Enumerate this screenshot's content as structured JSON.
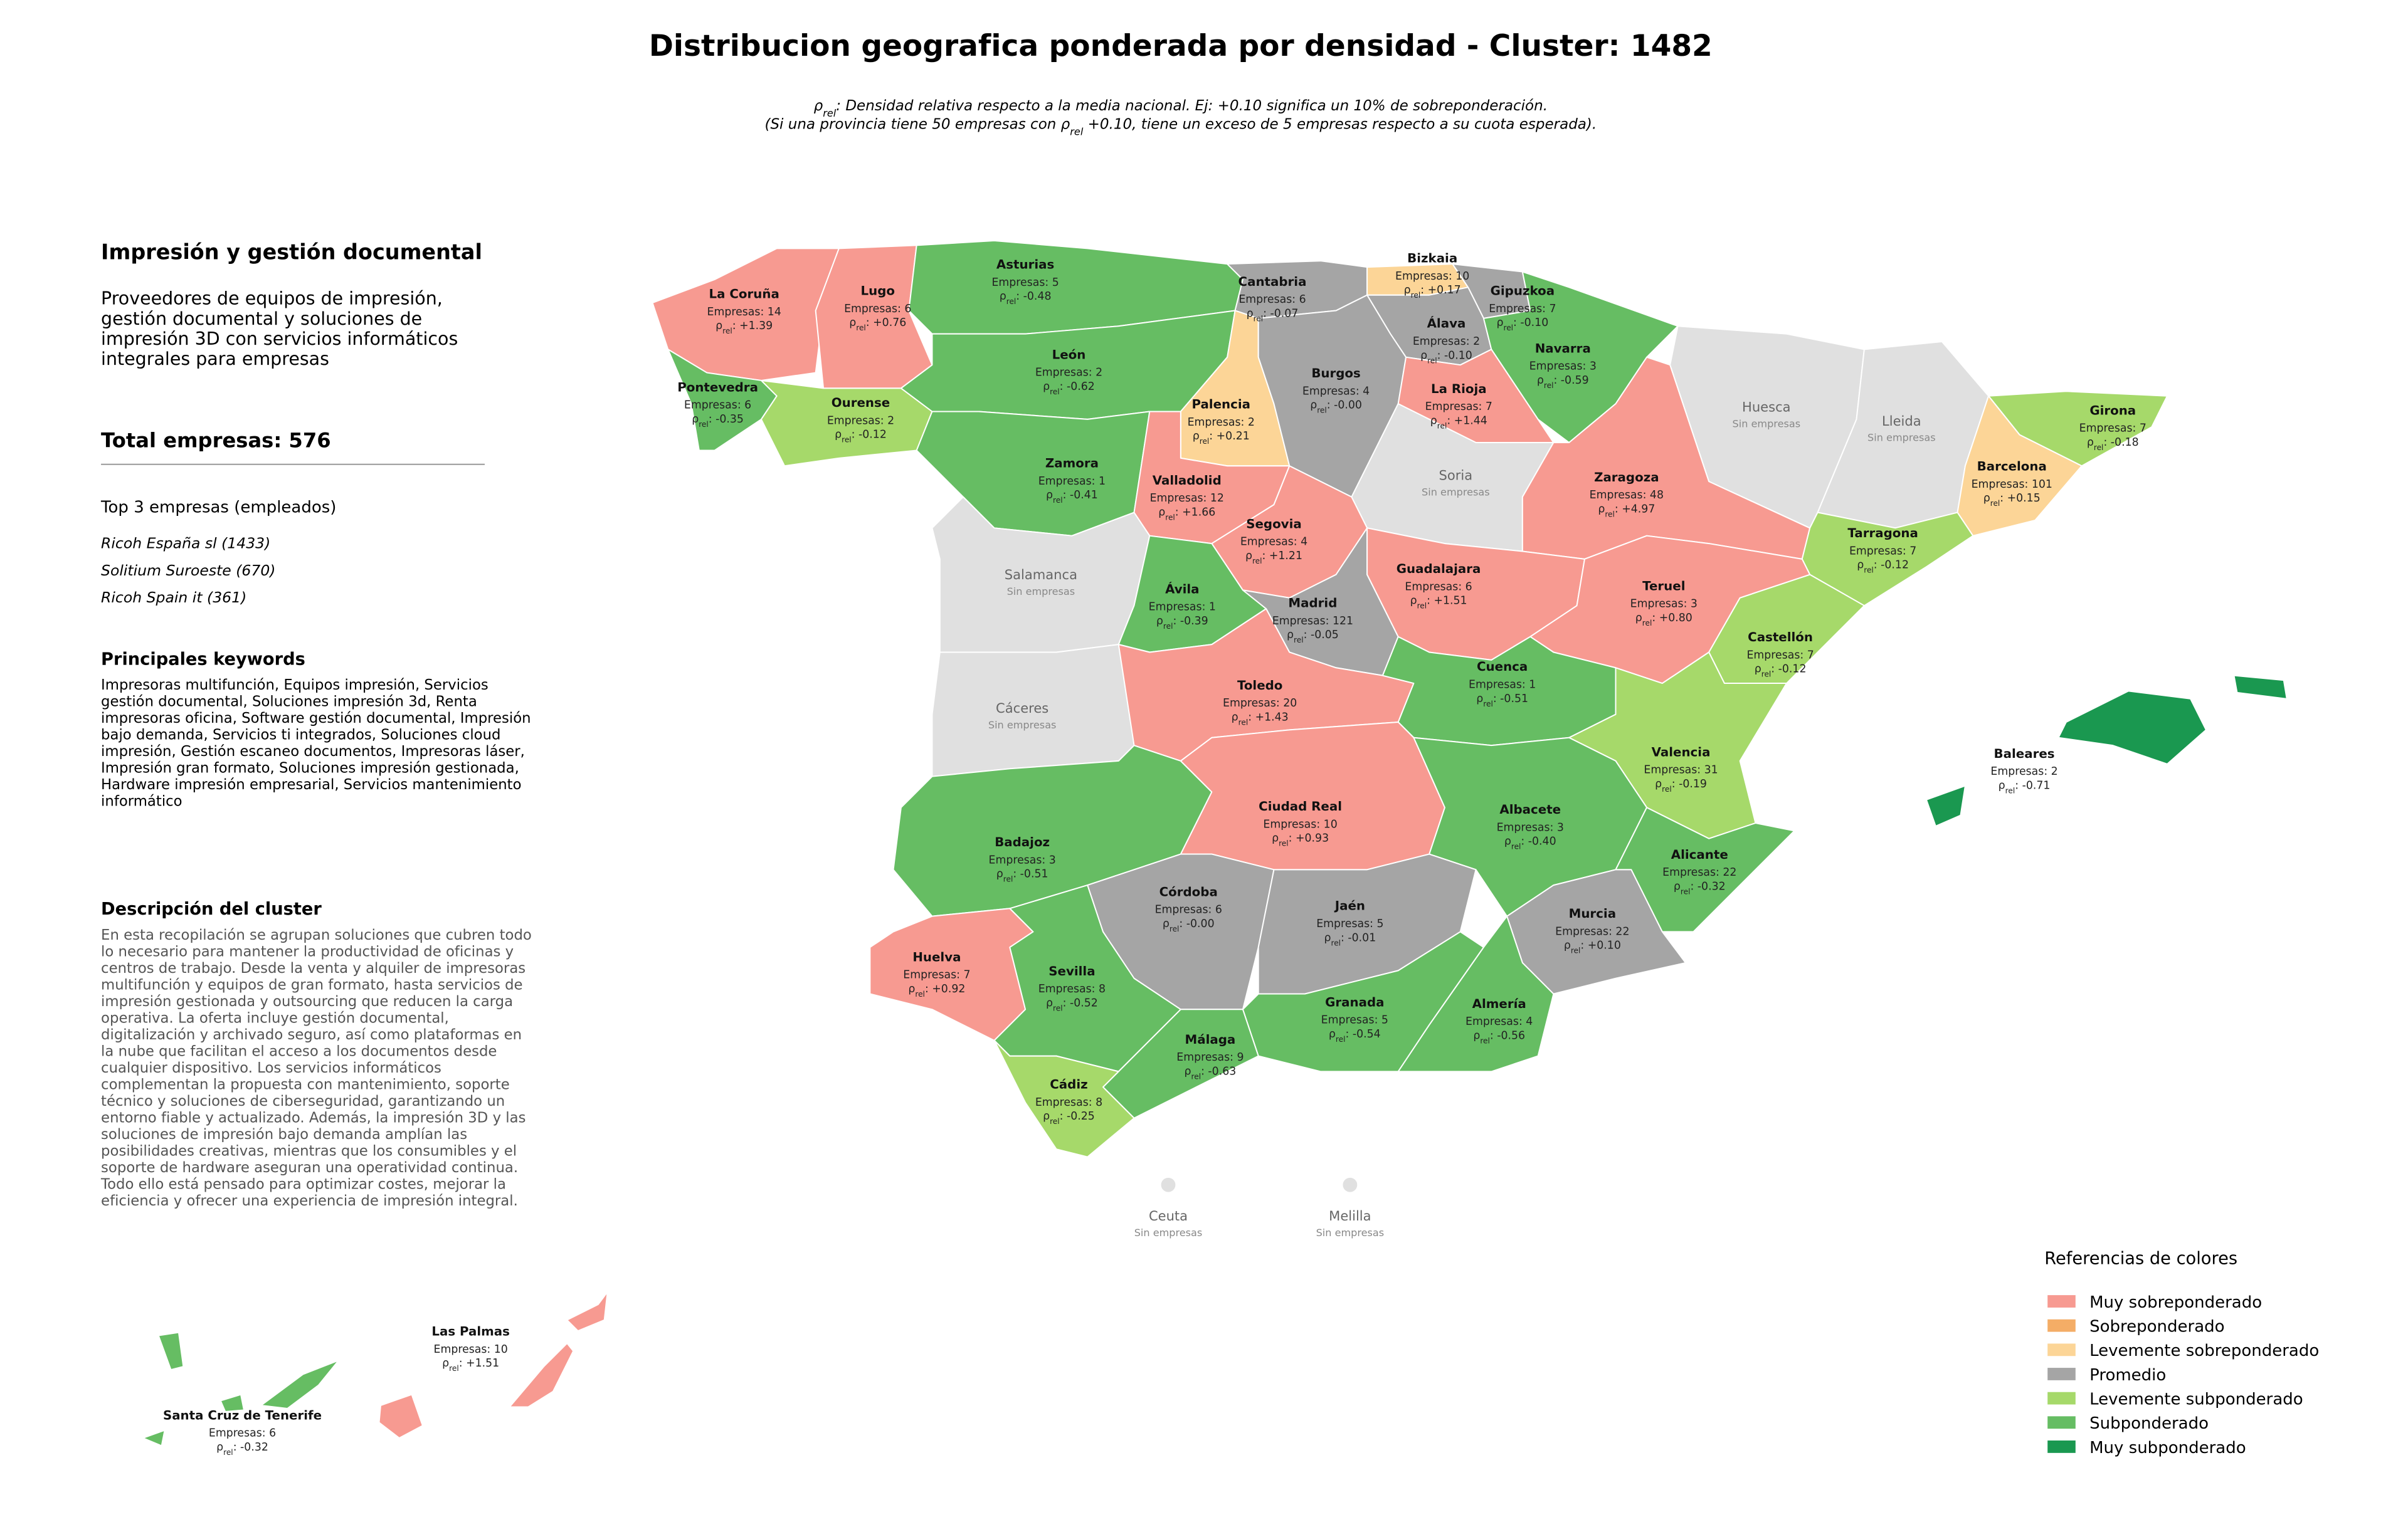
{
  "header": {
    "title": "Distribucion geografica ponderada por densidad - Cluster: 1482",
    "subtitle": [
      [
        {
          "text": "ρ"
        },
        {
          "text": "rel",
          "sub": true
        },
        {
          "text": ": Densidad relativa respecto a la media nacional. Ej: +0.10 significa un 10% de sobreponderación."
        }
      ],
      [
        {
          "text": "(Si una provincia tiene 50 empresas con "
        },
        {
          "text": "ρ"
        },
        {
          "text": "rel",
          "sub": true
        },
        {
          "text": " +0.10, tiene un exceso de 5 empresas respecto a su cuota esperada)."
        }
      ]
    ]
  },
  "panel": {
    "title": "Impresión y gestión documental",
    "summary": [
      "Proveedores de equipos de impresión,",
      "gestión documental y soluciones de",
      "impresión 3D con servicios informáticos",
      "integrales para empresas"
    ],
    "total": "Total empresas: 576",
    "top_title": "Top 3 empresas (empleados)",
    "top": [
      "Ricoh España sl (1433)",
      "Solitium Suroeste (670)",
      "Ricoh Spain it (361)"
    ],
    "keywords_title": "Principales keywords",
    "keywords": [
      "Impresoras multifunción, Equipos impresión, Servicios",
      "gestión documental, Soluciones impresión 3d, Renta",
      "impresoras oficina, Software gestión documental, Impresión",
      "bajo demanda, Servicios ti integrados, Soluciones cloud",
      "impresión, Gestión escaneo documentos, Impresoras láser,",
      "Impresión gran formato, Soluciones impresión gestionada,",
      "Hardware impresión empresarial, Servicios mantenimiento",
      "informático"
    ],
    "description_title": "Descripción del cluster",
    "description": [
      "En esta recopilación se agrupan soluciones que cubren todo",
      "lo necesario para mantener la productividad de oficinas y",
      "centros de trabajo. Desde la venta y alquiler de impresoras",
      "multifunción y equipos de gran formato, hasta servicios de",
      "impresión gestionada y outsourcing que reducen la carga",
      "operativa. La oferta incluye gestión documental,",
      "digitalización y archivado seguro, así como plataformas en",
      "la nube que facilitan el acceso a los documentos desde",
      "cualquier dispositivo. Los servicios informáticos",
      "complementan la propuesta con mantenimiento, soporte",
      "técnico y soluciones de ciberseguridad, garantizando un",
      "entorno fiable y actualizado. Además, la impresión 3D y las",
      "soluciones de impresión bajo demanda amplían las",
      "posibilidades creativas, mientras que los consumibles y el",
      "soporte de hardware aseguran una operatividad continua.",
      "Todo ello está pensado para optimizar costes, mejorar la",
      "eficiencia y ofrecer una experiencia de impresión integral."
    ]
  },
  "legend": {
    "title": "Referencias de colores",
    "items": [
      {
        "name": "Muy sobreponderado",
        "color": "#f79a91"
      },
      {
        "name": "Sobreponderado",
        "color": "#f4ad66"
      },
      {
        "name": "Levemente sobreponderado",
        "color": "#fcd597"
      },
      {
        "name": "Promedio",
        "color": "#a5a5a5"
      },
      {
        "name": "Levemente subponderado",
        "color": "#a6d96a"
      },
      {
        "name": "Subponderado",
        "color": "#66bd63"
      },
      {
        "name": "Muy subponderado",
        "color": "#1a9850"
      }
    ]
  },
  "provinces": [
    {
      "name": "La Coruña",
      "color": "#f79a91",
      "companies": "Empresas: 14",
      "density": [
        {
          "text": "ρ"
        },
        {
          "text": "rel",
          "sub": true
        },
        {
          "text": ": +1.39"
        }
      ]
    },
    {
      "name": "Lugo",
      "color": "#f79a91",
      "companies": "Empresas: 6",
      "density": [
        {
          "text": "ρ"
        },
        {
          "text": "rel",
          "sub": true
        },
        {
          "text": ": +0.76"
        }
      ]
    },
    {
      "name": "Pontevedra",
      "color": "#66bd63",
      "companies": "Empresas: 6",
      "density": [
        {
          "text": "ρ"
        },
        {
          "text": "rel",
          "sub": true
        },
        {
          "text": ": -0.35"
        }
      ]
    },
    {
      "name": "Ourense",
      "color": "#a6d96a",
      "companies": "Empresas: 2",
      "density": [
        {
          "text": "ρ"
        },
        {
          "text": "rel",
          "sub": true
        },
        {
          "text": ": -0.12"
        }
      ]
    },
    {
      "name": "Asturias",
      "color": "#66bd63",
      "companies": "Empresas: 5",
      "density": [
        {
          "text": "ρ"
        },
        {
          "text": "rel",
          "sub": true
        },
        {
          "text": ": -0.48"
        }
      ]
    },
    {
      "name": "Cantabria",
      "color": "#a5a5a5",
      "companies": "Empresas: 6",
      "density": [
        {
          "text": "ρ"
        },
        {
          "text": "rel",
          "sub": true
        },
        {
          "text": ": -0.07"
        }
      ]
    },
    {
      "name": "Bizkaia",
      "color": "#fcd597",
      "companies": "Empresas: 10",
      "density": [
        {
          "text": "ρ"
        },
        {
          "text": "rel",
          "sub": true
        },
        {
          "text": ": +0.17"
        }
      ]
    },
    {
      "name": "Gipuzkoa",
      "color": "#a5a5a5",
      "companies": "Empresas: 7",
      "density": [
        {
          "text": "ρ"
        },
        {
          "text": "rel",
          "sub": true
        },
        {
          "text": ": -0.10"
        }
      ]
    },
    {
      "name": "Álava",
      "color": "#a5a5a5",
      "companies": "Empresas: 2",
      "density": [
        {
          "text": "ρ"
        },
        {
          "text": "rel",
          "sub": true
        },
        {
          "text": ": -0.10"
        }
      ]
    },
    {
      "name": "Navarra",
      "color": "#66bd63",
      "companies": "Empresas: 3",
      "density": [
        {
          "text": "ρ"
        },
        {
          "text": "rel",
          "sub": true
        },
        {
          "text": ": -0.59"
        }
      ]
    },
    {
      "name": "León",
      "color": "#66bd63",
      "companies": "Empresas: 2",
      "density": [
        {
          "text": "ρ"
        },
        {
          "text": "rel",
          "sub": true
        },
        {
          "text": ": -0.62"
        }
      ]
    },
    {
      "name": "Palencia",
      "color": "#fcd597",
      "companies": "Empresas: 2",
      "density": [
        {
          "text": "ρ"
        },
        {
          "text": "rel",
          "sub": true
        },
        {
          "text": ": +0.21"
        }
      ]
    },
    {
      "name": "Burgos",
      "color": "#a5a5a5",
      "companies": "Empresas: 4",
      "density": [
        {
          "text": "ρ"
        },
        {
          "text": "rel",
          "sub": true
        },
        {
          "text": ": -0.00"
        }
      ]
    },
    {
      "name": "La Rioja",
      "color": "#f79a91",
      "companies": "Empresas: 7",
      "density": [
        {
          "text": "ρ"
        },
        {
          "text": "rel",
          "sub": true
        },
        {
          "text": ": +1.44"
        }
      ]
    },
    {
      "name": "Zamora",
      "color": "#66bd63",
      "companies": "Empresas: 1",
      "density": [
        {
          "text": "ρ"
        },
        {
          "text": "rel",
          "sub": true
        },
        {
          "text": ": -0.41"
        }
      ]
    },
    {
      "name": "Valladolid",
      "color": "#f79a91",
      "companies": "Empresas: 12",
      "density": [
        {
          "text": "ρ"
        },
        {
          "text": "rel",
          "sub": true
        },
        {
          "text": ": +1.66"
        }
      ]
    },
    {
      "name": "Soria",
      "color": "#e0e0e0",
      "companies": "Sin empresas"
    },
    {
      "name": "Segovia",
      "color": "#f79a91",
      "companies": "Empresas: 4",
      "density": [
        {
          "text": "ρ"
        },
        {
          "text": "rel",
          "sub": true
        },
        {
          "text": ": +1.21"
        }
      ]
    },
    {
      "name": "Zaragoza",
      "color": "#f79a91",
      "companies": "Empresas: 48",
      "density": [
        {
          "text": "ρ"
        },
        {
          "text": "rel",
          "sub": true
        },
        {
          "text": ": +4.97"
        }
      ]
    },
    {
      "name": "Huesca",
      "color": "#e0e0e0",
      "companies": "Sin empresas"
    },
    {
      "name": "Lleida",
      "color": "#e0e0e0",
      "companies": "Sin empresas"
    },
    {
      "name": "Girona",
      "color": "#a6d96a",
      "companies": "Empresas: 7",
      "density": [
        {
          "text": "ρ"
        },
        {
          "text": "rel",
          "sub": true
        },
        {
          "text": ": -0.18"
        }
      ]
    },
    {
      "name": "Barcelona",
      "color": "#fcd597",
      "companies": "Empresas: 101",
      "density": [
        {
          "text": "ρ"
        },
        {
          "text": "rel",
          "sub": true
        },
        {
          "text": ": +0.15"
        }
      ]
    },
    {
      "name": "Tarragona",
      "color": "#a6d96a",
      "companies": "Empresas: 7",
      "density": [
        {
          "text": "ρ"
        },
        {
          "text": "rel",
          "sub": true
        },
        {
          "text": ": -0.12"
        }
      ]
    },
    {
      "name": "Salamanca",
      "color": "#e0e0e0",
      "companies": "Sin empresas"
    },
    {
      "name": "Ávila",
      "color": "#66bd63",
      "companies": "Empresas: 1",
      "density": [
        {
          "text": "ρ"
        },
        {
          "text": "rel",
          "sub": true
        },
        {
          "text": ": -0.39"
        }
      ]
    },
    {
      "name": "Madrid",
      "color": "#a5a5a5",
      "companies": "Empresas: 121",
      "density": [
        {
          "text": "ρ"
        },
        {
          "text": "rel",
          "sub": true
        },
        {
          "text": ": -0.05"
        }
      ]
    },
    {
      "name": "Guadalajara",
      "color": "#f79a91",
      "companies": "Empresas: 6",
      "density": [
        {
          "text": "ρ"
        },
        {
          "text": "rel",
          "sub": true
        },
        {
          "text": ": +1.51"
        }
      ]
    },
    {
      "name": "Teruel",
      "color": "#f79a91",
      "companies": "Empresas: 3",
      "density": [
        {
          "text": "ρ"
        },
        {
          "text": "rel",
          "sub": true
        },
        {
          "text": ": +0.80"
        }
      ]
    },
    {
      "name": "Castellón",
      "color": "#a6d96a",
      "companies": "Empresas: 7",
      "density": [
        {
          "text": "ρ"
        },
        {
          "text": "rel",
          "sub": true
        },
        {
          "text": ": -0.12"
        }
      ]
    },
    {
      "name": "Cáceres",
      "color": "#e0e0e0",
      "companies": "Sin empresas"
    },
    {
      "name": "Toledo",
      "color": "#f79a91",
      "companies": "Empresas: 20",
      "density": [
        {
          "text": "ρ"
        },
        {
          "text": "rel",
          "sub": true
        },
        {
          "text": ": +1.43"
        }
      ]
    },
    {
      "name": "Cuenca",
      "color": "#66bd63",
      "companies": "Empresas: 1",
      "density": [
        {
          "text": "ρ"
        },
        {
          "text": "rel",
          "sub": true
        },
        {
          "text": ": -0.51"
        }
      ]
    },
    {
      "name": "Valencia",
      "color": "#a6d96a",
      "companies": "Empresas: 31",
      "density": [
        {
          "text": "ρ"
        },
        {
          "text": "rel",
          "sub": true
        },
        {
          "text": ": -0.19"
        }
      ]
    },
    {
      "name": "Badajoz",
      "color": "#66bd63",
      "companies": "Empresas: 3",
      "density": [
        {
          "text": "ρ"
        },
        {
          "text": "rel",
          "sub": true
        },
        {
          "text": ": -0.51"
        }
      ]
    },
    {
      "name": "Ciudad Real",
      "color": "#f79a91",
      "companies": "Empresas: 10",
      "density": [
        {
          "text": "ρ"
        },
        {
          "text": "rel",
          "sub": true
        },
        {
          "text": ": +0.93"
        }
      ]
    },
    {
      "name": "Albacete",
      "color": "#66bd63",
      "companies": "Empresas: 3",
      "density": [
        {
          "text": "ρ"
        },
        {
          "text": "rel",
          "sub": true
        },
        {
          "text": ": -0.40"
        }
      ]
    },
    {
      "name": "Alicante",
      "color": "#66bd63",
      "companies": "Empresas: 22",
      "density": [
        {
          "text": "ρ"
        },
        {
          "text": "rel",
          "sub": true
        },
        {
          "text": ": -0.32"
        }
      ]
    },
    {
      "name": "Murcia",
      "color": "#a5a5a5",
      "companies": "Empresas: 22",
      "density": [
        {
          "text": "ρ"
        },
        {
          "text": "rel",
          "sub": true
        },
        {
          "text": ": +0.10"
        }
      ]
    },
    {
      "name": "Córdoba",
      "color": "#a5a5a5",
      "companies": "Empresas: 6",
      "density": [
        {
          "text": "ρ"
        },
        {
          "text": "rel",
          "sub": true
        },
        {
          "text": ": -0.00"
        }
      ]
    },
    {
      "name": "Jaén",
      "color": "#a5a5a5",
      "companies": "Empresas: 5",
      "density": [
        {
          "text": "ρ"
        },
        {
          "text": "rel",
          "sub": true
        },
        {
          "text": ": -0.01"
        }
      ]
    },
    {
      "name": "Granada",
      "color": "#66bd63",
      "companies": "Empresas: 5",
      "density": [
        {
          "text": "ρ"
        },
        {
          "text": "rel",
          "sub": true
        },
        {
          "text": ": -0.54"
        }
      ]
    },
    {
      "name": "Almería",
      "color": "#66bd63",
      "companies": "Empresas: 4",
      "density": [
        {
          "text": "ρ"
        },
        {
          "text": "rel",
          "sub": true
        },
        {
          "text": ": -0.56"
        }
      ]
    },
    {
      "name": "Huelva",
      "color": "#f79a91",
      "companies": "Empresas: 7",
      "density": [
        {
          "text": "ρ"
        },
        {
          "text": "rel",
          "sub": true
        },
        {
          "text": ": +0.92"
        }
      ]
    },
    {
      "name": "Sevilla",
      "color": "#66bd63",
      "companies": "Empresas: 8",
      "density": [
        {
          "text": "ρ"
        },
        {
          "text": "rel",
          "sub": true
        },
        {
          "text": ": -0.52"
        }
      ]
    },
    {
      "name": "Málaga",
      "color": "#66bd63",
      "companies": "Empresas: 9",
      "density": [
        {
          "text": "ρ"
        },
        {
          "text": "rel",
          "sub": true
        },
        {
          "text": ": -0.63"
        }
      ]
    },
    {
      "name": "Cádiz",
      "color": "#a6d96a",
      "companies": "Empresas: 8",
      "density": [
        {
          "text": "ρ"
        },
        {
          "text": "rel",
          "sub": true
        },
        {
          "text": ": -0.25"
        }
      ]
    },
    {
      "name": "Baleares",
      "color": "#1a9850",
      "companies": "Empresas: 2",
      "density": [
        {
          "text": "ρ"
        },
        {
          "text": "rel",
          "sub": true
        },
        {
          "text": ": -0.71"
        }
      ]
    },
    {
      "name": "Las Palmas",
      "color": "#f79a91",
      "companies": "Empresas: 10",
      "density": [
        {
          "text": "ρ"
        },
        {
          "text": "rel",
          "sub": true
        },
        {
          "text": ": +1.51"
        }
      ]
    },
    {
      "name": "Santa Cruz de Tenerife",
      "color": "#66bd63",
      "companies": "Empresas: 6",
      "density": [
        {
          "text": "ρ"
        },
        {
          "text": "rel",
          "sub": true
        },
        {
          "text": ": -0.32"
        }
      ]
    },
    {
      "name": "Ceuta",
      "color": "#e0e0e0",
      "companies": "Sin empresas"
    },
    {
      "name": "Melilla",
      "color": "#e0e0e0",
      "companies": "Sin empresas"
    }
  ]
}
